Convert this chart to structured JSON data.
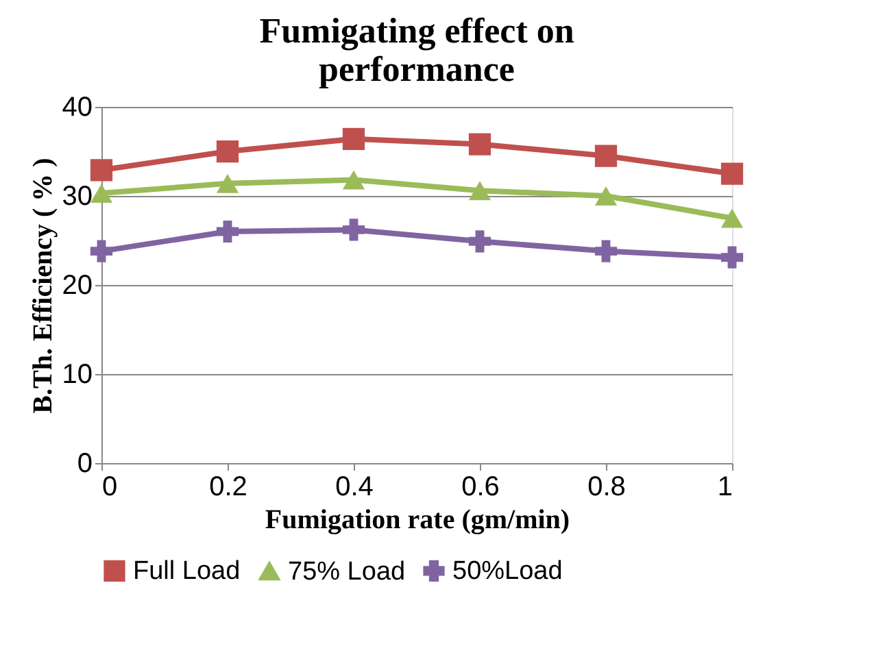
{
  "chart_data": {
    "type": "line",
    "title": "Fumigating effect on performance",
    "xlabel": "Fumigation rate (gm/min)",
    "ylabel": "B.Th. Efficiency ( % )",
    "x": [
      0,
      0.2,
      0.4,
      0.6,
      0.8,
      1
    ],
    "xlim": [
      0,
      1
    ],
    "xticks": [
      0,
      0.2,
      0.4,
      0.6,
      0.8,
      1
    ],
    "ylim": [
      0,
      40
    ],
    "yticks": [
      0,
      10,
      20,
      30,
      40
    ],
    "grid": "y",
    "legend": "bottom",
    "series": [
      {
        "name": "Full Load",
        "color": "#c0504d",
        "marker": "square",
        "values": [
          32.9,
          35.0,
          36.4,
          35.8,
          34.5,
          32.5
        ]
      },
      {
        "name": "75% Load",
        "color": "#9bbb59",
        "marker": "triangle",
        "values": [
          30.3,
          31.4,
          31.8,
          30.6,
          30.0,
          27.5
        ]
      },
      {
        "name": "50%Load",
        "color": "#8064a2",
        "marker": "cross",
        "values": [
          23.8,
          26.0,
          26.2,
          24.9,
          23.8,
          23.1
        ]
      }
    ]
  }
}
